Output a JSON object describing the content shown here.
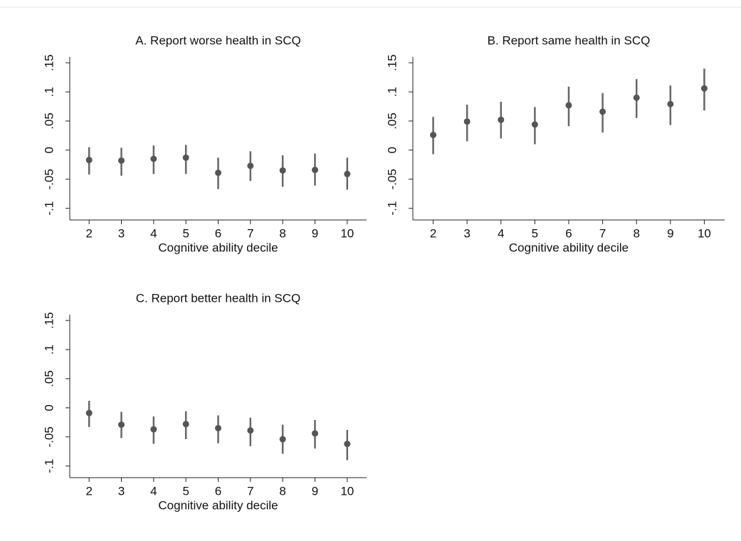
{
  "chart_data": [
    {
      "type": "scatter",
      "title": "A. Report worse health in SCQ",
      "x_label": "Cognitive ability decile",
      "x": [
        2,
        3,
        4,
        5,
        6,
        7,
        8,
        9,
        10
      ],
      "values": [
        -0.017,
        -0.018,
        -0.015,
        -0.013,
        -0.039,
        -0.027,
        -0.035,
        -0.034,
        -0.041
      ],
      "ci_low": [
        -0.042,
        -0.044,
        -0.041,
        -0.041,
        -0.067,
        -0.053,
        -0.063,
        -0.061,
        -0.068
      ],
      "ci_high": [
        0.005,
        0.004,
        0.008,
        0.009,
        -0.013,
        -0.002,
        -0.009,
        -0.006,
        -0.013
      ],
      "color": "#555555",
      "xlim": [
        1.4,
        10.6
      ],
      "xticks": [
        2,
        3,
        4,
        5,
        6,
        7,
        8,
        9,
        10
      ],
      "ylim": [
        -0.12,
        0.16
      ],
      "yticks": [
        {
          "value": -0.1,
          "label": "-.1"
        },
        {
          "value": -0.05,
          "label": "-.05"
        },
        0,
        {
          "value": 0.05,
          "label": ".05"
        },
        {
          "value": 0.1,
          "label": ".1"
        },
        {
          "value": 0.15,
          "label": ".15"
        }
      ]
    },
    {
      "type": "scatter",
      "title": "B. Report same health in SCQ",
      "x_label": "Cognitive ability decile",
      "x": [
        2,
        3,
        4,
        5,
        6,
        7,
        8,
        9,
        10
      ],
      "values": [
        0.026,
        0.049,
        0.052,
        0.044,
        0.077,
        0.066,
        0.09,
        0.079,
        0.106
      ],
      "ci_low": [
        -0.007,
        0.015,
        0.02,
        0.01,
        0.041,
        0.03,
        0.055,
        0.043,
        0.068
      ],
      "ci_high": [
        0.057,
        0.078,
        0.083,
        0.074,
        0.109,
        0.098,
        0.122,
        0.111,
        0.14
      ],
      "color": "#555555",
      "xlim": [
        1.4,
        10.6
      ],
      "xticks": [
        2,
        3,
        4,
        5,
        6,
        7,
        8,
        9,
        10
      ],
      "ylim": [
        -0.12,
        0.16
      ],
      "yticks": [
        {
          "value": -0.1,
          "label": "-.1"
        },
        {
          "value": -0.05,
          "label": "-.05"
        },
        0,
        {
          "value": 0.05,
          "label": ".05"
        },
        {
          "value": 0.1,
          "label": ".1"
        },
        {
          "value": 0.15,
          "label": ".15"
        }
      ]
    },
    {
      "type": "scatter",
      "title": "C. Report better health in SCQ",
      "x_label": "Cognitive ability decile",
      "x": [
        2,
        3,
        4,
        5,
        6,
        7,
        8,
        9,
        10
      ],
      "values": [
        -0.009,
        -0.029,
        -0.037,
        -0.028,
        -0.035,
        -0.039,
        -0.054,
        -0.044,
        -0.062
      ],
      "ci_low": [
        -0.033,
        -0.052,
        -0.062,
        -0.054,
        -0.061,
        -0.066,
        -0.079,
        -0.07,
        -0.09
      ],
      "ci_high": [
        0.012,
        -0.007,
        -0.015,
        -0.006,
        -0.013,
        -0.017,
        -0.029,
        -0.021,
        -0.038
      ],
      "color": "#555555",
      "xlim": [
        1.4,
        10.6
      ],
      "xticks": [
        2,
        3,
        4,
        5,
        6,
        7,
        8,
        9,
        10
      ],
      "ylim": [
        -0.12,
        0.16
      ],
      "yticks": [
        {
          "value": -0.1,
          "label": "-.1"
        },
        {
          "value": -0.05,
          "label": "-.05"
        },
        0,
        {
          "value": 0.05,
          "label": ".05"
        },
        {
          "value": 0.1,
          "label": ".1"
        },
        {
          "value": 0.15,
          "label": ".15"
        }
      ]
    }
  ]
}
